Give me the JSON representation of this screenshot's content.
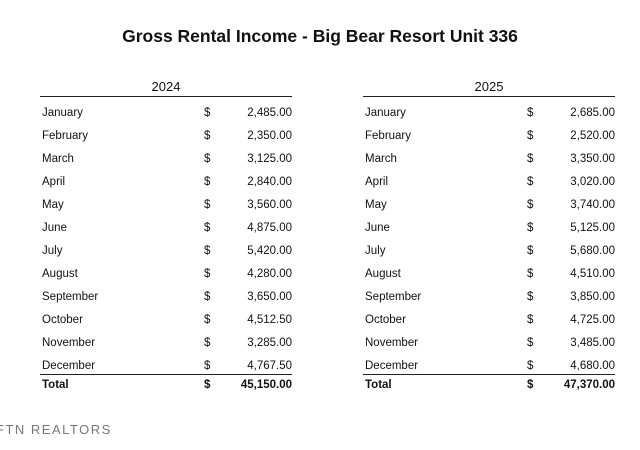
{
  "header": {
    "title": "Gross Rental Income - Big Bear Resort Unit 336"
  },
  "tables": [
    {
      "year": "2024",
      "currency": "$",
      "rows": [
        [
          "January",
          "2,485.00"
        ],
        [
          "February",
          "2,350.00"
        ],
        [
          "March",
          "3,125.00"
        ],
        [
          "April",
          "2,840.00"
        ],
        [
          "May",
          "3,560.00"
        ],
        [
          "June",
          "4,875.00"
        ],
        [
          "July",
          "5,420.00"
        ],
        [
          "August",
          "4,280.00"
        ],
        [
          "September",
          "3,650.00"
        ],
        [
          "October",
          "4,512.50"
        ],
        [
          "November",
          "3,285.00"
        ],
        [
          "December",
          "4,767.50"
        ]
      ],
      "total": [
        "Total",
        "45,150.00"
      ]
    },
    {
      "year": "2025",
      "currency": "$",
      "rows": [
        [
          "January",
          "2,685.00"
        ],
        [
          "February",
          "2,520.00"
        ],
        [
          "March",
          "3,350.00"
        ],
        [
          "April",
          "3,020.00"
        ],
        [
          "May",
          "3,740.00"
        ],
        [
          "June",
          "5,125.00"
        ],
        [
          "July",
          "5,680.00"
        ],
        [
          "August",
          "4,510.00"
        ],
        [
          "September",
          "3,850.00"
        ],
        [
          "October",
          "4,725.00"
        ],
        [
          "November",
          "3,485.00"
        ],
        [
          "December",
          "4,680.00"
        ]
      ],
      "total": [
        "Total",
        "47,370.00"
      ]
    }
  ],
  "footer": {
    "text": "FTN REALTORS"
  }
}
